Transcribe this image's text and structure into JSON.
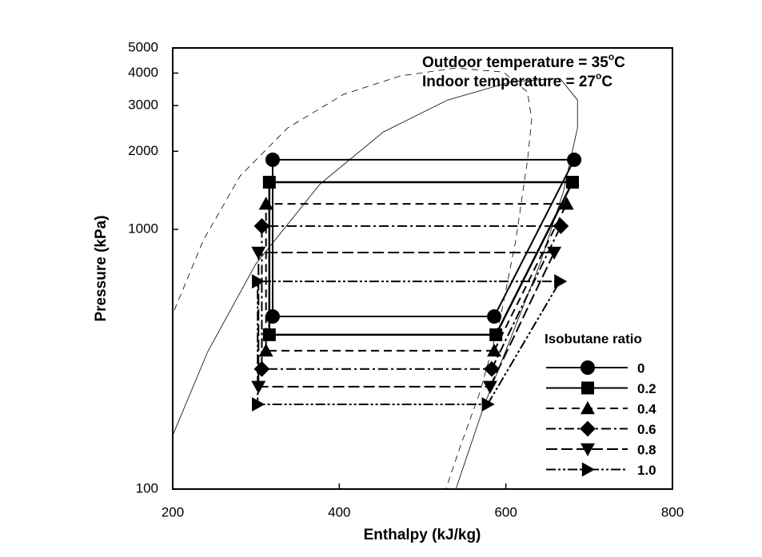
{
  "chart_data": {
    "type": "cycle-log",
    "x_label": "Enthalpy (kJ/kg)",
    "y_label": "Pressure (kPa)",
    "xlim": [
      200,
      800
    ],
    "xticks": [
      200,
      400,
      600,
      800
    ],
    "ylim": [
      100,
      5000
    ],
    "yticks": [
      100,
      1000,
      2000,
      3000,
      4000,
      5000
    ],
    "y_log": true,
    "annotations": [
      {
        "text": "Outdoor temperature = 35",
        "sup": "o",
        "unit": "C"
      },
      {
        "text": "Indoor temperature = 27",
        "sup": "o",
        "unit": "C"
      }
    ],
    "legend_title": "Isobutane ratio",
    "legend_position": "lower right",
    "curves": [
      {
        "dash": true,
        "x": [
          202,
          237,
          281,
          338,
          405,
          473,
          540,
          597,
          626,
          631,
          626,
          612,
          593,
          569,
          545,
          528
        ],
        "y": [
          489,
          912,
          1607,
          2460,
          3311,
          3899,
          4185,
          4036,
          3383,
          2640,
          1852,
          912,
          449,
          237,
          145,
          100
        ]
      },
      {
        "dash": false,
        "x": [
          200,
          242,
          300,
          377,
          453,
          530,
          607,
          665,
          686,
          686,
          669,
          641,
          607,
          573,
          540
        ],
        "y": [
          161,
          338,
          738,
          1497,
          2374,
          3150,
          3710,
          3815,
          3150,
          2460,
          1396,
          738,
          390,
          206,
          100
        ]
      }
    ],
    "series": [
      {
        "name": "0",
        "color": "#000000",
        "marker": "circle",
        "dash": "none",
        "x": [
          586,
          682,
          320,
          320
        ],
        "y": [
          462,
          1855,
          1855,
          462
        ]
      },
      {
        "name": "0.2",
        "color": "#000000",
        "marker": "square",
        "dash": "none",
        "x": [
          588,
          680,
          316,
          316
        ],
        "y": [
          393,
          1520,
          1520,
          393
        ]
      },
      {
        "name": "0.4",
        "color": "#000000",
        "marker": "triangle-up",
        "dash": "10,6",
        "x": [
          586,
          673,
          312,
          312
        ],
        "y": [
          341,
          1254,
          1254,
          341
        ]
      },
      {
        "name": "0.6",
        "color": "#000000",
        "marker": "diamond",
        "dash": "12,4,3,4",
        "x": [
          583,
          666,
          307,
          307
        ],
        "y": [
          290,
          1030,
          1030,
          290
        ]
      },
      {
        "name": "0.8",
        "color": "#000000",
        "marker": "triangle-down",
        "dash": "14,5",
        "x": [
          581,
          658,
          303,
          303
        ],
        "y": [
          248,
          815,
          815,
          248
        ]
      },
      {
        "name": "1.0",
        "color": "#000000",
        "marker": "triangle-right",
        "dash": "12,3,3,3,3,3",
        "x": [
          578,
          665,
          302,
          302
        ],
        "y": [
          212,
          631,
          631,
          212
        ]
      }
    ]
  }
}
